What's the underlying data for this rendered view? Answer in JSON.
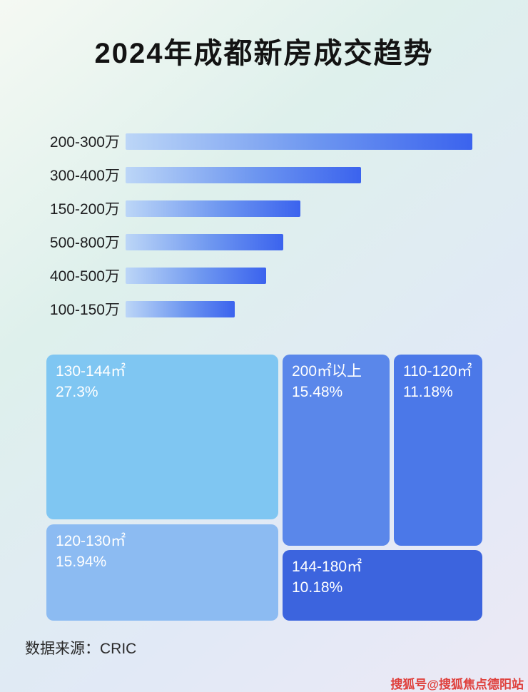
{
  "title": "2024年成都新房成交趋势",
  "chart_data": [
    {
      "type": "bar",
      "orientation": "horizontal",
      "categories": [
        "200-300万",
        "300-400万",
        "150-200万",
        "500-800万",
        "400-500万",
        "100-150万"
      ],
      "values": [
        100,
        68,
        50.5,
        45.4,
        40.6,
        31.5
      ],
      "value_unit": "percent of longest bar (no numeric axis shown)",
      "bar_gradient": [
        "#bcd6f7",
        "#3b63ee"
      ]
    },
    {
      "type": "treemap",
      "items": [
        {
          "label": "130-144㎡",
          "value": 27.3,
          "value_display": "27.3%",
          "color": "#7fc6f2"
        },
        {
          "label": "200㎡以上",
          "value": 15.48,
          "value_display": "15.48%",
          "color": "#5a87ea"
        },
        {
          "label": "110-120㎡",
          "value": 11.18,
          "value_display": "11.18%",
          "color": "#4b78e8"
        },
        {
          "label": "120-130㎡",
          "value": 15.94,
          "value_display": "15.94%",
          "color": "#8cbbf2"
        },
        {
          "label": "144-180㎡",
          "value": 10.18,
          "value_display": "10.18%",
          "color": "#3c64de"
        }
      ]
    }
  ],
  "footer": {
    "source_label": "数据来源：CRIC"
  },
  "watermark": "搜狐号@搜狐焦点德阳站"
}
